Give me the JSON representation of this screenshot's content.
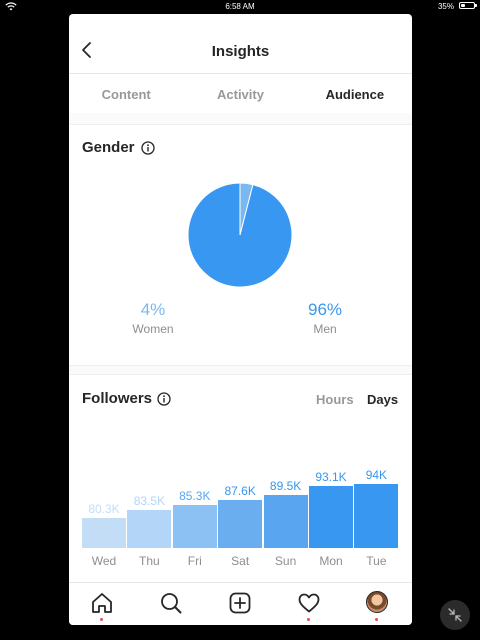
{
  "status_bar": {
    "time": "6:58 AM",
    "battery": "35%",
    "battery_level": 0.35
  },
  "header": {
    "title": "Insights",
    "back_icon": "chevron-left-icon"
  },
  "tabs": [
    {
      "label": "Content",
      "active": false
    },
    {
      "label": "Activity",
      "active": false
    },
    {
      "label": "Audience",
      "active": true
    }
  ],
  "gender": {
    "title": "Gender",
    "women_pct": "4%",
    "women_label": "Women",
    "men_pct": "96%",
    "men_label": "Men"
  },
  "followers": {
    "title": "Followers",
    "toggle_hours": "Hours",
    "toggle_days": "Days",
    "active_toggle": "Days"
  },
  "chart_data": [
    {
      "type": "pie",
      "title": "Gender",
      "categories": [
        "Women",
        "Men"
      ],
      "values": [
        4,
        96
      ],
      "colors": [
        "#7ab8f2",
        "#3897f0"
      ]
    },
    {
      "type": "bar",
      "title": "Followers",
      "categories": [
        "Wed",
        "Thu",
        "Fri",
        "Sat",
        "Sun",
        "Mon",
        "Tue"
      ],
      "values": [
        80.3,
        83.5,
        85.3,
        87.6,
        89.5,
        93.1,
        94
      ],
      "value_labels": [
        "80.3K",
        "83.5K",
        "85.3K",
        "87.6K",
        "89.5K",
        "93.1K",
        "94K"
      ],
      "units": "K",
      "colors": [
        "#c3ddf7",
        "#b3d5f7",
        "#8cc1f3",
        "#6aaef0",
        "#5aa5ef",
        "#3897f0",
        "#3897f0"
      ],
      "label_colors": [
        "#c3ddf7",
        "#b3d5f7",
        "#5aa5ef",
        "#3897f0",
        "#3897f0",
        "#3897f0",
        "#3897f0"
      ]
    }
  ],
  "bottom_nav": [
    {
      "icon": "home-icon",
      "dot": true
    },
    {
      "icon": "search-icon",
      "dot": false
    },
    {
      "icon": "add-post-icon",
      "dot": false
    },
    {
      "icon": "heart-icon",
      "dot": true
    },
    {
      "icon": "profile-avatar-icon",
      "dot": true
    }
  ],
  "floating_button_icon": "minimize-arrows-icon"
}
